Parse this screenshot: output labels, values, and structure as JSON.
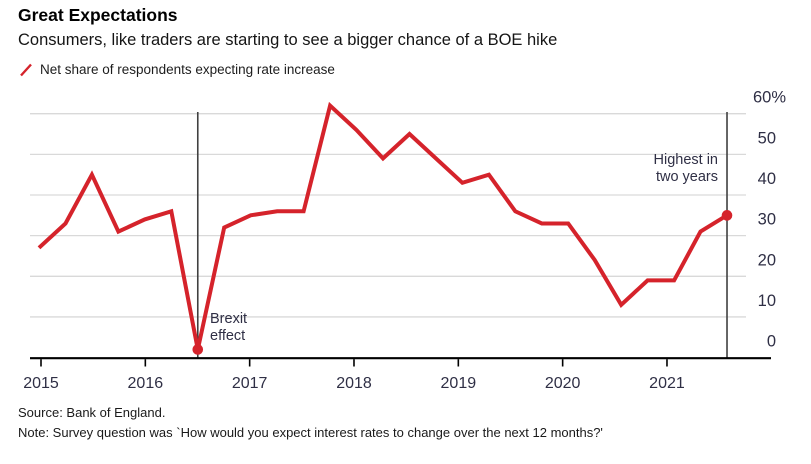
{
  "header": {
    "title": "Great Expectations",
    "subtitle": "Consumers, like traders are starting to see a bigger chance of a BOE hike"
  },
  "annotations": {
    "brexit": {
      "line1": "Brexit",
      "line2": "effect"
    },
    "highest": {
      "line1": "Highest in",
      "line2": "two years"
    }
  },
  "footer": {
    "source": "Source: Bank of England.",
    "note": "Note: Survey question was `How would you expect interest rates to change over the next 12 months?'"
  },
  "colors": {
    "line": "#d5232b",
    "grid": "#d9d9d9",
    "marker_line": "#404040",
    "axis": "#000000",
    "axis_label": "#2f2f45"
  },
  "chart_data": {
    "type": "line",
    "title": "Great Expectations",
    "subtitle": "Consumers, like traders are starting to see a bigger chance of a BOE hike",
    "legend": "Net share of respondents expecting rate increase",
    "legend_position": "top-left",
    "grid": "horizontal-only",
    "categories": [
      "2015 Q1",
      "2015 Q2",
      "2015 Q3",
      "2015 Q4",
      "2016 Q1",
      "2016 Q2",
      "2016 Q3",
      "2016 Q4",
      "2017 Q1",
      "2017 Q2",
      "2017 Q3",
      "2017 Q4",
      "2018 Q1",
      "2018 Q2",
      "2018 Q3",
      "2018 Q4",
      "2019 Q1",
      "2019 Q2",
      "2019 Q3",
      "2019 Q4",
      "2020 Q1",
      "2020 Q2",
      "2020 Q3",
      "2020 Q4",
      "2021 Q1",
      "2021 Q2",
      "2021 Q3"
    ],
    "values": [
      27,
      33,
      45,
      31,
      34,
      36,
      2,
      32,
      35,
      36,
      36,
      62,
      56,
      49,
      55,
      49,
      43,
      45,
      36,
      33,
      33,
      24,
      13,
      19,
      19,
      31,
      35
    ],
    "x_tick_labels": [
      "2015",
      "2016",
      "2017",
      "2018",
      "2019",
      "2020",
      "2021"
    ],
    "y_ticks": [
      0,
      10,
      20,
      30,
      40,
      50,
      60
    ],
    "y_top_tick_label": "60%",
    "ylim": [
      0,
      63
    ],
    "markers": [
      {
        "category": "2016 Q3",
        "value": 2,
        "annotation": "Brexit effect"
      },
      {
        "category": "2021 Q3",
        "value": 35,
        "annotation": "Highest in two years"
      }
    ]
  }
}
